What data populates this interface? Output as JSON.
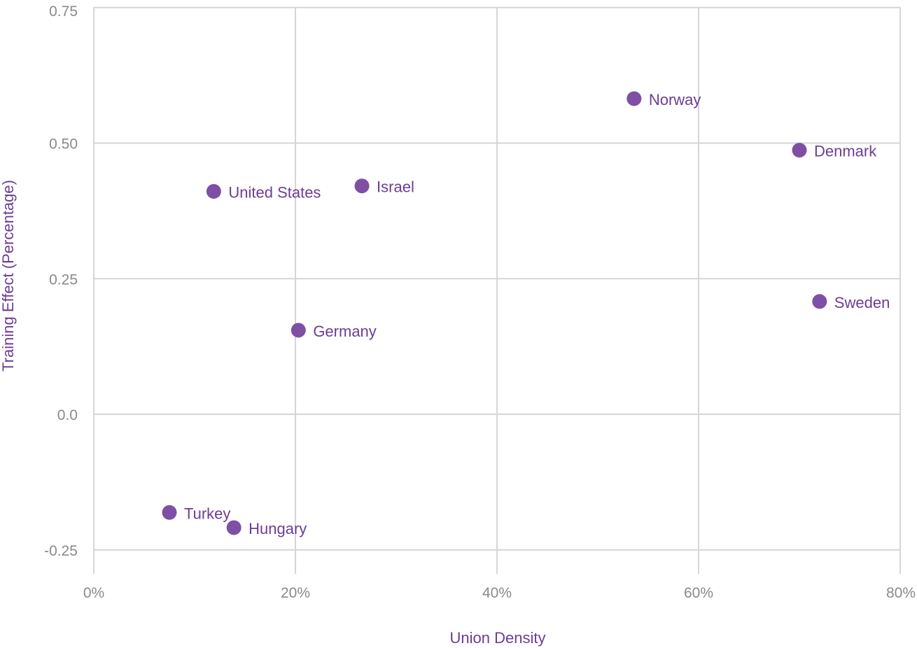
{
  "chart_data": {
    "type": "scatter",
    "title": "",
    "xlabel": "Union Density",
    "ylabel": "Training Effect (Percentage)",
    "xlim": [
      0,
      0.8
    ],
    "ylim": [
      -0.3,
      0.75
    ],
    "x_ticks": [
      0,
      0.2,
      0.4,
      0.6,
      0.8
    ],
    "x_tick_labels": [
      "0%",
      "20%",
      "40%",
      "60%",
      "80%"
    ],
    "y_ticks": [
      -0.25,
      0,
      0.25,
      0.5,
      0.75
    ],
    "y_tick_labels": [
      "-0.25",
      "0.0",
      "0.25",
      "0.50",
      "0.75"
    ],
    "grid": true,
    "points": [
      {
        "label": "Norway",
        "x": 0.536,
        "y": 0.582
      },
      {
        "label": "Denmark",
        "x": 0.7,
        "y": 0.487
      },
      {
        "label": "United States",
        "x": 0.119,
        "y": 0.411
      },
      {
        "label": "Israel",
        "x": 0.266,
        "y": 0.421
      },
      {
        "label": "Sweden",
        "x": 0.72,
        "y": 0.208
      },
      {
        "label": "Germany",
        "x": 0.203,
        "y": 0.155
      },
      {
        "label": "Turkey",
        "x": 0.075,
        "y": -0.181
      },
      {
        "label": "Hungary",
        "x": 0.139,
        "y": -0.209
      }
    ]
  },
  "colors": {
    "point": "#7e4fa5",
    "label": "#6b3d96",
    "axis_title": "#6b3d96",
    "tick": "#8a8a8a",
    "grid": "#d6d6d6"
  }
}
